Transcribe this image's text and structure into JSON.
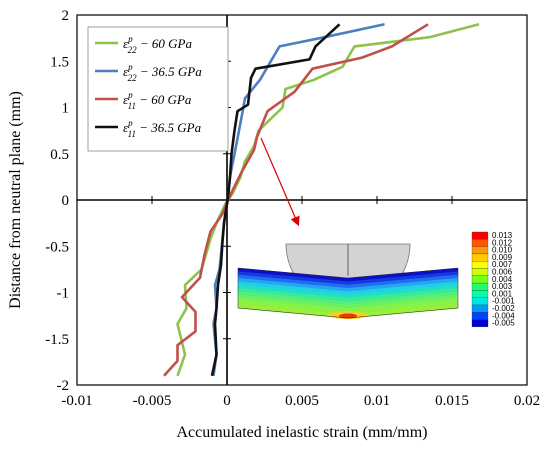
{
  "chart_data": {
    "type": "line",
    "xlabel": "Accumulated inelastic strain (mm/mm)",
    "ylabel": "Distance  from neutral plane (mm)",
    "xlim": [
      -0.01,
      0.02
    ],
    "ylim": [
      -2,
      2
    ],
    "xticks": [
      -0.01,
      -0.005,
      0,
      0.005,
      0.01,
      0.015,
      0.02
    ],
    "xtick_labels": [
      "-0.01",
      "-0.005",
      "0",
      "0.005",
      "0.01",
      "0.015",
      "0.02"
    ],
    "yticks": [
      2,
      1.5,
      1,
      0.5,
      0,
      -0.5,
      -1,
      -1.5,
      -2
    ],
    "ytick_labels": [
      "2",
      "1.5",
      "1",
      "0.5",
      "0",
      "-0.5",
      "-1",
      "-1.5",
      "-2"
    ],
    "grid": false,
    "legend_position": "top-left",
    "series": [
      {
        "id": "e22-60",
        "legend": {
          "base": "ε",
          "sup": "p",
          "sub": "22",
          "rest": " − 60 GPa"
        },
        "color": "#8dc34a",
        "points": [
          [
            -0.0033,
            -1.9
          ],
          [
            -0.0028,
            -1.67
          ],
          [
            -0.0033,
            -1.34
          ],
          [
            -0.0027,
            -1.17
          ],
          [
            -0.0028,
            -0.92
          ],
          [
            -0.0017,
            -0.75
          ],
          [
            -0.0014,
            -0.59
          ],
          [
            -0.0011,
            -0.42
          ],
          [
            -0.0007,
            -0.25
          ],
          [
            -0.0001,
            -0.04
          ],
          [
            0.0004,
            0.08
          ],
          [
            0.0009,
            0.25
          ],
          [
            0.0012,
            0.42
          ],
          [
            0.0018,
            0.58
          ],
          [
            0.0021,
            0.75
          ],
          [
            0.0037,
            1.0
          ],
          [
            0.0039,
            1.2
          ],
          [
            0.0058,
            1.3
          ],
          [
            0.0077,
            1.44
          ],
          [
            0.0085,
            1.66
          ],
          [
            0.0135,
            1.76
          ],
          [
            0.0168,
            1.9
          ]
        ]
      },
      {
        "id": "e22-365",
        "legend": {
          "base": "ε",
          "sup": "p",
          "sub": "22",
          "rest": " − 36.5 GPa"
        },
        "color": "#4b7fc1",
        "points": [
          [
            -0.0009,
            -1.9
          ],
          [
            -0.0007,
            -1.67
          ],
          [
            -0.0009,
            -1.34
          ],
          [
            -0.0007,
            -1.17
          ],
          [
            -0.0008,
            -0.92
          ],
          [
            -0.0005,
            -0.75
          ],
          [
            -0.0004,
            -0.59
          ],
          [
            -0.0003,
            -0.42
          ],
          [
            -0.0002,
            -0.25
          ],
          [
            0,
            -0.04
          ],
          [
            0.0001,
            0.08
          ],
          [
            0.0002,
            0.25
          ],
          [
            0.0004,
            0.42
          ],
          [
            0.0006,
            0.58
          ],
          [
            0.001,
            0.92
          ],
          [
            0.0012,
            1.1
          ],
          [
            0.0022,
            1.3
          ],
          [
            0.0035,
            1.66
          ],
          [
            0.0065,
            1.76
          ],
          [
            0.0105,
            1.9
          ]
        ]
      },
      {
        "id": "e11-60",
        "legend": {
          "base": "ε",
          "sup": "p",
          "sub": "11",
          "rest": " − 60 GPa"
        },
        "color": "#c0504d",
        "points": [
          [
            -0.0042,
            -1.9
          ],
          [
            -0.0033,
            -1.74
          ],
          [
            -0.0033,
            -1.57
          ],
          [
            -0.0021,
            -1.42
          ],
          [
            -0.0021,
            -1.21
          ],
          [
            -0.003,
            -1.05
          ],
          [
            -0.0018,
            -0.84
          ],
          [
            -0.0015,
            -0.59
          ],
          [
            -0.0011,
            -0.34
          ],
          [
            -0.0003,
            -0.15
          ],
          [
            0.0003,
            0.08
          ],
          [
            0.001,
            0.31
          ],
          [
            0.0018,
            0.54
          ],
          [
            0.002,
            0.68
          ],
          [
            0.0027,
            0.96
          ],
          [
            0.0045,
            1.17
          ],
          [
            0.0057,
            1.42
          ],
          [
            0.009,
            1.54
          ],
          [
            0.011,
            1.66
          ],
          [
            0.0134,
            1.9
          ]
        ]
      },
      {
        "id": "e11-365",
        "legend": {
          "base": "ε",
          "sup": "p",
          "sub": "11",
          "rest": " − 36.5 GPa"
        },
        "color": "#111111",
        "points": [
          [
            -0.001,
            -1.9
          ],
          [
            -0.0007,
            -1.67
          ],
          [
            -0.0008,
            -1.34
          ],
          [
            -0.0007,
            -1.17
          ],
          [
            -0.0006,
            -0.92
          ],
          [
            -0.0004,
            -0.7
          ],
          [
            -0.0003,
            -0.45
          ],
          [
            -0.0002,
            -0.25
          ],
          [
            0,
            -0.04
          ],
          [
            0.0001,
            0.08
          ],
          [
            0.0002,
            0.25
          ],
          [
            0.0003,
            0.5
          ],
          [
            0.0005,
            0.75
          ],
          [
            0.0007,
            0.96
          ],
          [
            0.0014,
            1.03
          ],
          [
            0.0016,
            1.32
          ],
          [
            0.0019,
            1.42
          ],
          [
            0.0055,
            1.52
          ],
          [
            0.0059,
            1.66
          ],
          [
            0.0075,
            1.9
          ]
        ]
      }
    ],
    "inset": {
      "colorbar_labels": [
        "0.013",
        "0.012",
        "0.010",
        "0.009",
        "0.007",
        "0.006",
        "0.004",
        "0.003",
        "0.001",
        "-0.001",
        "-0.002",
        "-0.004",
        "-0.005"
      ],
      "colorbar_colors": [
        "#ff0000",
        "#ff5500",
        "#ff9900",
        "#ffcc00",
        "#ffff00",
        "#ccff00",
        "#77ff22",
        "#22ff66",
        "#00ffaa",
        "#00e5e5",
        "#0099ff",
        "#0044ff",
        "#0000d0"
      ]
    }
  }
}
